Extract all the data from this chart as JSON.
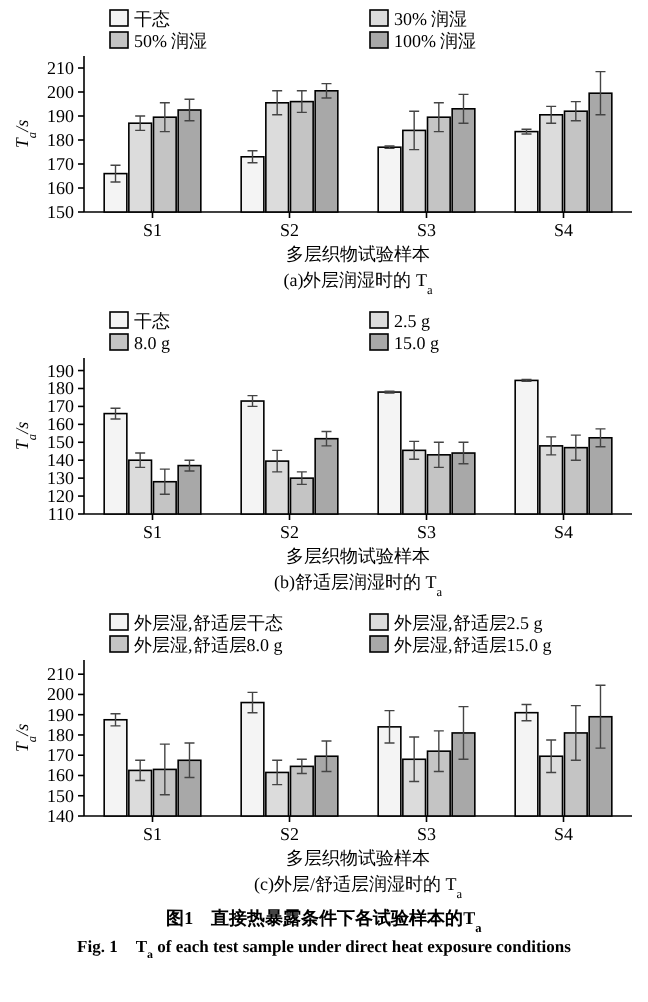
{
  "chart_data": [
    {
      "type": "bar",
      "title": "(a)外层润湿时的 T$_{a}$",
      "xlabel": "多层织物试验样本",
      "ylabel": "T$_{a}$/s",
      "categories": [
        "S1",
        "S2",
        "S3",
        "S4"
      ],
      "ylim": [
        150,
        215
      ],
      "yticks": [
        150,
        160,
        170,
        180,
        190,
        200,
        210
      ],
      "legend": "top",
      "grid": false,
      "series": [
        {
          "name": "干态",
          "color": "#f4f4f4",
          "values": [
            166,
            173,
            177,
            183.5
          ],
          "errors": [
            3.5,
            2.5,
            0.5,
            1
          ]
        },
        {
          "name": "30% 润湿",
          "color": "#dcdcdc",
          "values": [
            187,
            195.5,
            184,
            190.5
          ],
          "errors": [
            3,
            5,
            8,
            3.5
          ]
        },
        {
          "name": "50% 润湿",
          "color": "#c4c4c4",
          "values": [
            189.5,
            196,
            189.5,
            192
          ],
          "errors": [
            6,
            4.5,
            6,
            4
          ]
        },
        {
          "name": "100% 润湿",
          "color": "#a8a8a8",
          "values": [
            192.5,
            200.5,
            193,
            199.5
          ],
          "errors": [
            4.5,
            3,
            6,
            9
          ]
        }
      ]
    },
    {
      "type": "bar",
      "title": "(b)舒适层润湿时的 T$_{a}$",
      "xlabel": "多层织物试验样本",
      "ylabel": "T$_{a}$/s",
      "categories": [
        "S1",
        "S2",
        "S3",
        "S4"
      ],
      "ylim": [
        110,
        197
      ],
      "yticks": [
        110,
        120,
        130,
        140,
        150,
        160,
        170,
        180,
        190
      ],
      "legend": "top",
      "grid": false,
      "series": [
        {
          "name": "干态",
          "color": "#f4f4f4",
          "values": [
            166,
            173,
            178,
            184.5
          ],
          "errors": [
            3,
            3,
            0.5,
            0.5
          ]
        },
        {
          "name": "2.5 g",
          "color": "#dcdcdc",
          "values": [
            140,
            139.5,
            145.5,
            148
          ],
          "errors": [
            4,
            6,
            5,
            5
          ]
        },
        {
          "name": "8.0 g",
          "color": "#c4c4c4",
          "values": [
            128,
            130,
            143,
            147
          ],
          "errors": [
            7,
            3.5,
            7,
            7
          ]
        },
        {
          "name": "15.0 g",
          "color": "#a8a8a8",
          "values": [
            137,
            152,
            144,
            152.5
          ],
          "errors": [
            3,
            4,
            6,
            5
          ]
        }
      ]
    },
    {
      "type": "bar",
      "title": "(c)外层/舒适层润湿时的 T$_{a}$",
      "xlabel": "多层织物试验样本",
      "ylabel": "T$_{a}$/s",
      "categories": [
        "S1",
        "S2",
        "S3",
        "S4"
      ],
      "ylim": [
        140,
        217
      ],
      "yticks": [
        140,
        150,
        160,
        170,
        180,
        190,
        200,
        210
      ],
      "legend": "top",
      "grid": false,
      "annotations": [
        "图1　直接热暴露条件下各试验样本的T$_{a}$",
        "Fig. 1　T$_{a}$ of each test sample under direct heat exposure conditions"
      ],
      "series": [
        {
          "name": "外层湿,舒适层干态",
          "color": "#f4f4f4",
          "values": [
            187.5,
            196,
            184,
            191
          ],
          "errors": [
            3,
            5,
            8,
            4
          ]
        },
        {
          "name": "外层湿,舒适层2.5 g",
          "color": "#dcdcdc",
          "values": [
            162.5,
            161.5,
            168,
            169.5
          ],
          "errors": [
            5,
            6,
            11,
            8
          ]
        },
        {
          "name": "外层湿,舒适层8.0 g",
          "color": "#c4c4c4",
          "values": [
            163,
            164.5,
            172,
            181
          ],
          "errors": [
            12.5,
            3.5,
            10,
            13.5
          ]
        },
        {
          "name": "外层湿,舒适层15.0 g",
          "color": "#a8a8a8",
          "values": [
            167.5,
            169.5,
            181,
            189
          ],
          "errors": [
            8.5,
            7.5,
            13,
            15.5
          ]
        }
      ]
    }
  ]
}
